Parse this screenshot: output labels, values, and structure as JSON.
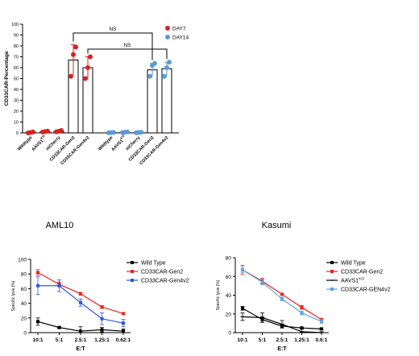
{
  "chart_data": [
    {
      "type": "bar",
      "ylabel": "CD33CAR-Percentage",
      "ylim": [
        0,
        100
      ],
      "yticks": [
        "0",
        "10",
        "20",
        "30",
        "40",
        "50",
        "60",
        "70",
        "80",
        "90",
        "100"
      ],
      "groups": [
        {
          "name": "DAY7",
          "color": "#d7231f",
          "categories": [
            "Wildtype",
            "AAVS1",
            "mCherry",
            "CD33CAR-Gen2",
            "CD33CAR-Gen4v2"
          ],
          "category_sup": [
            "",
            "KO",
            "",
            "",
            ""
          ],
          "values": [
            0.5,
            1.2,
            1.5,
            67,
            60
          ],
          "errors": [
            0.3,
            0.6,
            0.8,
            14,
            10
          ],
          "points": [
            [
              0,
              0.4,
              0.8
            ],
            [
              0.8,
              1.2,
              1.6
            ],
            [
              1.0,
              1.5,
              2.2
            ],
            [
              52,
              72,
              79
            ],
            [
              50,
              60,
              70
            ]
          ]
        },
        {
          "name": "DAY14",
          "color": "#5b9bd5",
          "categories": [
            "Wildtype",
            "AAVS1",
            "mCherry",
            "CD33CAR-Gen2",
            "CD33CAR-Gen4v2"
          ],
          "category_sup": [
            "",
            "KO",
            "",
            "",
            ""
          ],
          "values": [
            0.3,
            0.6,
            0.4,
            58,
            59
          ],
          "errors": [
            0.2,
            0.3,
            0.2,
            6,
            6
          ],
          "points": [
            [
              0.1,
              0.3,
              0.5
            ],
            [
              0.3,
              0.6,
              0.9
            ],
            [
              0.2,
              0.4,
              0.6
            ],
            [
              52,
              62,
              64
            ],
            [
              52,
              60,
              65
            ]
          ]
        }
      ],
      "legend": {
        "placement": "top-right",
        "entries": [
          "DAY7",
          "DAY14"
        ]
      },
      "annotations": [
        "NS",
        "NS"
      ]
    },
    {
      "type": "line",
      "title": "AML10",
      "xlabel": "E:T",
      "ylabel": "Specific lysis (%)",
      "ylim": [
        0,
        100
      ],
      "yticks": [
        "0",
        "20",
        "40",
        "60",
        "80",
        "100"
      ],
      "categories": [
        "10:1",
        "5:1",
        "2.5:1",
        "1.25:1",
        "0.62:1"
      ],
      "series": [
        {
          "name": "Wild Type",
          "color": "#000000",
          "values": [
            15,
            7,
            2,
            4,
            2
          ],
          "errors": [
            5,
            1,
            6,
            3,
            3
          ]
        },
        {
          "name": "CD33CAR-Gen2",
          "color": "#e8241e",
          "values": [
            82,
            66,
            53,
            35,
            26
          ],
          "errors": [
            4,
            3,
            2,
            2,
            1
          ]
        },
        {
          "name": "CD33CAR-Gen4v2",
          "color": "#2b55e0",
          "values": [
            64,
            64,
            41,
            19,
            13
          ],
          "errors": [
            12,
            8,
            5,
            8,
            5
          ]
        }
      ],
      "legend": {
        "placement": "right",
        "entries": [
          "Wild Type",
          "CD33CAR-Gen2",
          "CD33CAR-Gen4v2"
        ]
      }
    },
    {
      "type": "line",
      "title": "Kasumi",
      "xlabel": "E:T",
      "ylabel": "Specific lysis (%)",
      "ylim": [
        0,
        80
      ],
      "yticks": [
        "0",
        "20",
        "40",
        "60",
        "80"
      ],
      "categories": [
        "10:1",
        "5:1",
        "2.5:1",
        "1.25:1",
        "0.6:1"
      ],
      "series": [
        {
          "name": "Wild Type",
          "color": "#000000",
          "values": [
            26,
            14,
            7,
            5,
            4
          ],
          "errors": [
            2,
            3,
            2,
            1,
            1
          ]
        },
        {
          "name": "CD33CAR-Gen2",
          "color": "#e8241e",
          "values": [
            67,
            55,
            41,
            27,
            14
          ],
          "errors": [
            5,
            3,
            1,
            2,
            1
          ]
        },
        {
          "name": "AAVS1",
          "name_sup": "KO",
          "color": "#000000",
          "values": [
            17,
            16,
            9,
            1,
            0
          ],
          "errors": [
            4,
            5,
            4,
            3,
            1
          ]
        },
        {
          "name": "CD33CAR-GEN4v2",
          "color": "#5ba6e0",
          "values": [
            67,
            54,
            36,
            21,
            12
          ],
          "errors": [
            3,
            3,
            2,
            2,
            2
          ]
        }
      ],
      "legend": {
        "placement": "right",
        "entries": [
          "Wild Type",
          "CD33CAR-Gen2",
          "AAVS1KO",
          "CD33CAR-GEN4v2"
        ]
      }
    }
  ]
}
